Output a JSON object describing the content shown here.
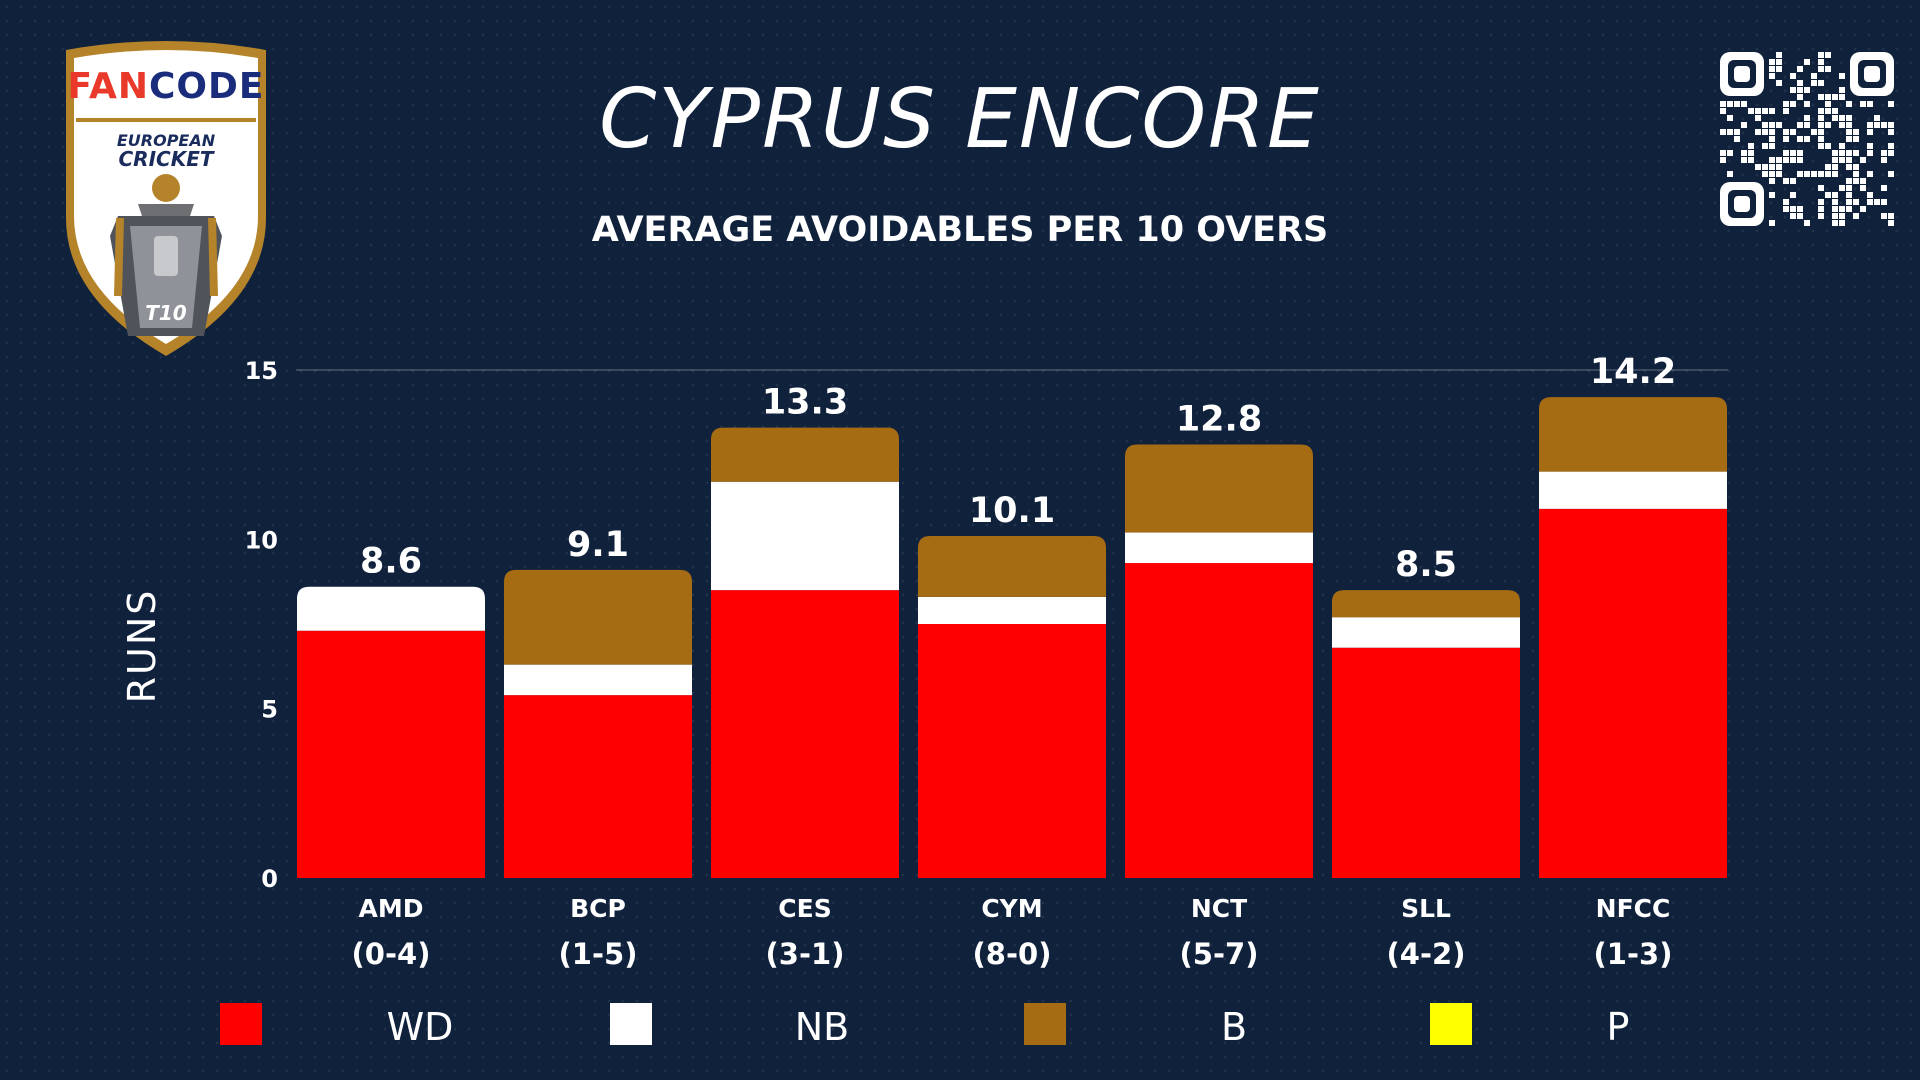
{
  "brand": {
    "logo_word_red": "FAN",
    "logo_word_blue": "CODE",
    "line1": "EUROPEAN",
    "line2": "CRICKET",
    "badge": "T10"
  },
  "colors": {
    "background": "#10213c",
    "WD": "#ff0000",
    "NB": "#ffffff",
    "B": "#a66c14",
    "P": "#ffff00"
  },
  "icons": [
    "fancode-european-cricket-t10-logo",
    "qr-code-icon"
  ],
  "chart_data": {
    "type": "bar",
    "stacked": true,
    "title": "CYPRUS ENCORE",
    "subtitle": "AVERAGE AVOIDABLES PER 10 OVERS",
    "xlabel": "",
    "ylabel": "RUNS",
    "ylim": [
      0,
      15
    ],
    "yticks": [
      0,
      5,
      10,
      15
    ],
    "grid": "top-line-only",
    "legend_position": "bottom",
    "categories": [
      "AMD",
      "BCP",
      "CES",
      "CYM",
      "NCT",
      "SLL",
      "NFCC"
    ],
    "records": [
      "(0-4)",
      "(1-5)",
      "(3-1)",
      "(8-0)",
      "(5-7)",
      "(4-2)",
      "(1-3)"
    ],
    "series": [
      {
        "name": "WD",
        "values": [
          7.3,
          5.4,
          8.5,
          7.5,
          9.3,
          6.8,
          10.9
        ]
      },
      {
        "name": "NB",
        "values": [
          1.3,
          0.9,
          3.2,
          0.8,
          0.9,
          0.9,
          1.1
        ]
      },
      {
        "name": "B",
        "values": [
          0.0,
          2.8,
          1.6,
          1.8,
          2.6,
          0.8,
          2.2
        ]
      },
      {
        "name": "P",
        "values": [
          0,
          0,
          0,
          0,
          0,
          0,
          0
        ]
      }
    ],
    "totals": [
      "8.6",
      "9.1",
      "13.3",
      "10.1",
      "12.8",
      "8.5",
      "14.2"
    ]
  }
}
